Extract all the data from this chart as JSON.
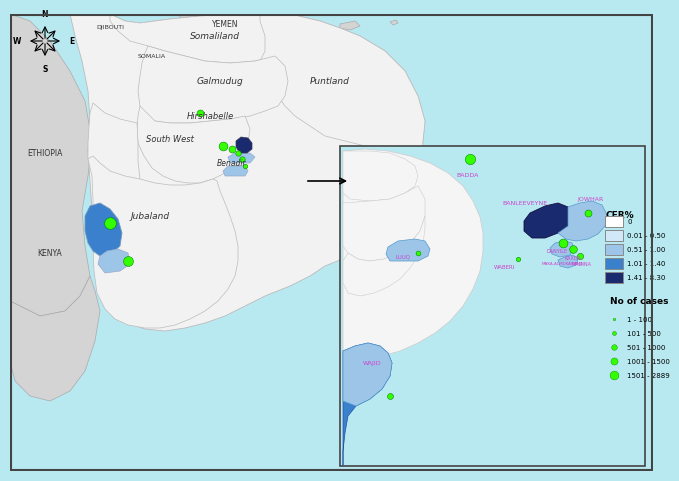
{
  "ocean_color": "#b8e8f0",
  "land_color": "#f2f2f2",
  "land_border_color": "#cccccc",
  "neighbor_color": "#d4d4d4",
  "cfr_labels": [
    "0",
    "0.01 - 0.50",
    "0.51 - 1.00",
    "1.01 - 1.40",
    "1.41 - 8.30"
  ],
  "cfr_hex": [
    "#ffffff",
    "#d0e8f8",
    "#9dc5e8",
    "#3a80cc",
    "#1a2a6e"
  ],
  "dot_color": "#33ff00",
  "dot_edge_color": "#008800",
  "case_labels": [
    "1 - 100",
    "101 - 500",
    "501 - 1000",
    "1001 - 1500",
    "1501 - 2889"
  ],
  "case_sizes_pt": [
    4,
    12,
    25,
    40,
    60
  ],
  "legend_dot_sizes": [
    4,
    12,
    25,
    40,
    60
  ]
}
